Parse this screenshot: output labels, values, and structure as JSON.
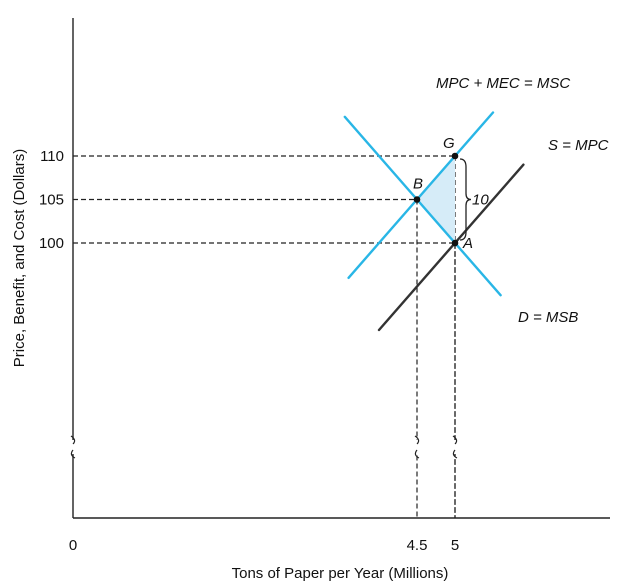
{
  "chart_data": {
    "type": "line",
    "xlabel": "Tons of Paper per Year (Millions)",
    "ylabel": "Price, Benefit, and Cost (Dollars)",
    "x_ticks": [
      {
        "label": "0",
        "value": 0
      },
      {
        "label": "4.5",
        "value": 4.5
      },
      {
        "label": "5",
        "value": 5
      }
    ],
    "y_ticks": [
      {
        "label": "100",
        "value": 100
      },
      {
        "label": "105",
        "value": 105
      },
      {
        "label": "110",
        "value": 110
      }
    ],
    "axis_break": true,
    "series": [
      {
        "name": "MPC + MEC = MSC",
        "color": "#29b6e6",
        "slope": 10,
        "points": [
          [
            3.6,
            96
          ],
          [
            5.5,
            115
          ]
        ]
      },
      {
        "name": "S = MPC",
        "color": "#333333",
        "slope": 10,
        "points": [
          [
            4.0,
            90
          ],
          [
            5.9,
            109
          ]
        ]
      },
      {
        "name": "D = MSB",
        "color": "#29b6e6",
        "slope": -10,
        "points": [
          [
            3.55,
            114.5
          ],
          [
            5.6,
            94
          ]
        ]
      }
    ],
    "points": [
      {
        "label": "G",
        "x": 5,
        "y": 110
      },
      {
        "label": "B",
        "x": 4.5,
        "y": 105
      },
      {
        "label": "A",
        "x": 5,
        "y": 100
      }
    ],
    "annotations": [
      {
        "text": "10",
        "from": [
          5,
          100
        ],
        "to": [
          5,
          110
        ]
      }
    ],
    "shaded_region": {
      "vertices": [
        [
          4.5,
          105
        ],
        [
          5,
          110
        ],
        [
          5,
          100
        ]
      ],
      "color": "#d6ecf8"
    }
  }
}
